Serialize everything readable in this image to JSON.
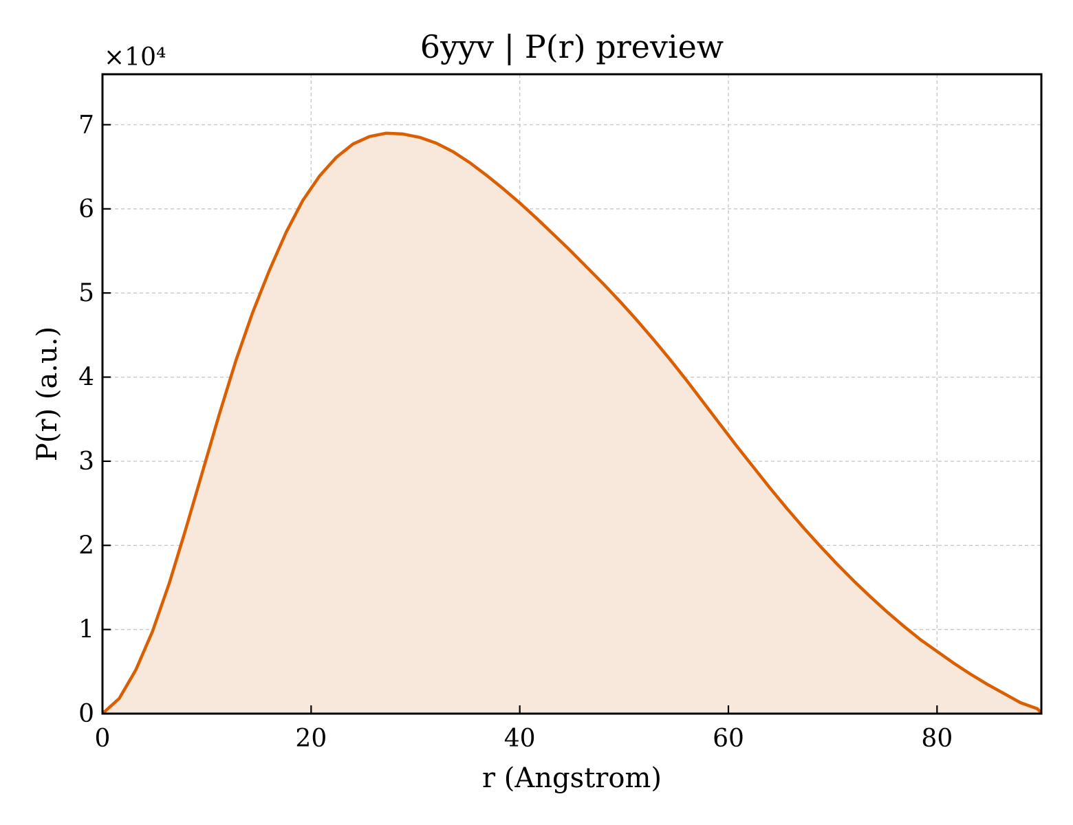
{
  "chart_data": {
    "type": "area",
    "title": "6yyv | P(r) preview",
    "xlabel": "r (Angstrom)",
    "ylabel": "P(r) (a.u.)",
    "y_multiplier": "×10⁴",
    "xlim": [
      0,
      90
    ],
    "ylim": [
      0,
      7.6
    ],
    "xticks": [
      0,
      20,
      40,
      60,
      80
    ],
    "yticks": [
      0,
      1,
      2,
      3,
      4,
      5,
      6,
      7
    ],
    "grid": true,
    "line_color": "#d95f02",
    "fill_color": "#f8e8dc",
    "series": [
      {
        "x": [
          0,
          1.6,
          3.2,
          4.8,
          6.4,
          8.0,
          9.6,
          11.2,
          12.8,
          14.4,
          16.0,
          17.6,
          19.2,
          20.8,
          22.4,
          24.0,
          25.6,
          27.2,
          28.8,
          30.4,
          32.0,
          33.6,
          35.2,
          36.8,
          38.4,
          40.0,
          41.6,
          43.2,
          44.8,
          46.4,
          48.0,
          49.6,
          51.2,
          52.8,
          54.4,
          56.0,
          57.6,
          59.2,
          60.8,
          62.4,
          64.0,
          65.6,
          67.2,
          68.8,
          70.4,
          72.0,
          73.6,
          75.2,
          76.8,
          78.4,
          80.0,
          81.6,
          83.2,
          84.8,
          86.4,
          88.0,
          89.6,
          90.0
        ],
        "y": [
          0.0,
          0.18,
          0.52,
          0.98,
          1.55,
          2.2,
          2.88,
          3.56,
          4.2,
          4.77,
          5.27,
          5.72,
          6.1,
          6.39,
          6.61,
          6.77,
          6.86,
          6.9,
          6.89,
          6.85,
          6.78,
          6.68,
          6.55,
          6.4,
          6.24,
          6.07,
          5.89,
          5.7,
          5.51,
          5.31,
          5.11,
          4.9,
          4.68,
          4.45,
          4.21,
          3.96,
          3.7,
          3.44,
          3.18,
          2.93,
          2.68,
          2.44,
          2.21,
          1.99,
          1.78,
          1.58,
          1.39,
          1.21,
          1.04,
          0.88,
          0.74,
          0.6,
          0.47,
          0.35,
          0.24,
          0.13,
          0.06,
          0.01
        ]
      }
    ]
  }
}
